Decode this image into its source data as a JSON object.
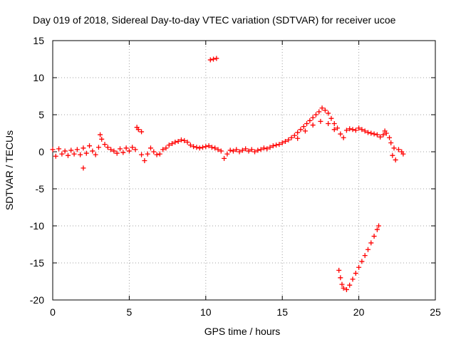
{
  "chart_data": {
    "type": "scatter",
    "title": "Day 019 of 2018, Sidereal Day-to-day VTEC variation (SDTVAR) for receiver ucoe",
    "xlabel": "GPS time / hours",
    "ylabel": "SDTVAR / TECUs",
    "xlim": [
      0,
      25
    ],
    "ylim": [
      -20,
      15
    ],
    "xticks": [
      0,
      5,
      10,
      15,
      20,
      25
    ],
    "yticks": [
      15,
      10,
      5,
      0,
      -5,
      -10,
      -15,
      -20
    ],
    "grid": true,
    "marker": "+",
    "colors": {
      "series": "#ff0000",
      "grid": "#a0a0a0",
      "axis": "#000000"
    },
    "series": [
      {
        "name": "SDTVAR",
        "points": [
          [
            0.0,
            0.3
          ],
          [
            0.2,
            -0.6
          ],
          [
            0.4,
            0.4
          ],
          [
            0.6,
            -0.3
          ],
          [
            0.8,
            0.1
          ],
          [
            1.0,
            -0.5
          ],
          [
            1.2,
            0.2
          ],
          [
            1.4,
            -0.3
          ],
          [
            1.6,
            0.3
          ],
          [
            1.8,
            -0.4
          ],
          [
            2.0,
            0.5
          ],
          [
            2.0,
            -2.2
          ],
          [
            2.2,
            -0.2
          ],
          [
            2.4,
            0.8
          ],
          [
            2.6,
            0.1
          ],
          [
            2.8,
            -0.4
          ],
          [
            3.0,
            0.6
          ],
          [
            3.1,
            2.3
          ],
          [
            3.2,
            1.7
          ],
          [
            3.4,
            1.0
          ],
          [
            3.6,
            0.6
          ],
          [
            3.8,
            0.3
          ],
          [
            4.0,
            0.1
          ],
          [
            4.2,
            -0.2
          ],
          [
            4.4,
            0.4
          ],
          [
            4.6,
            -0.1
          ],
          [
            4.8,
            0.5
          ],
          [
            5.0,
            0.1
          ],
          [
            5.2,
            0.6
          ],
          [
            5.4,
            0.3
          ],
          [
            5.5,
            3.3
          ],
          [
            5.6,
            3.0
          ],
          [
            5.8,
            2.7
          ],
          [
            5.8,
            -0.4
          ],
          [
            6.0,
            -1.2
          ],
          [
            6.2,
            -0.3
          ],
          [
            6.4,
            0.5
          ],
          [
            6.6,
            0.0
          ],
          [
            6.8,
            -0.4
          ],
          [
            7.0,
            -0.3
          ],
          [
            7.2,
            0.3
          ],
          [
            7.4,
            0.5
          ],
          [
            7.6,
            0.9
          ],
          [
            7.8,
            1.1
          ],
          [
            8.0,
            1.3
          ],
          [
            8.2,
            1.4
          ],
          [
            8.4,
            1.6
          ],
          [
            8.6,
            1.5
          ],
          [
            8.8,
            1.3
          ],
          [
            9.0,
            0.9
          ],
          [
            9.2,
            0.7
          ],
          [
            9.4,
            0.6
          ],
          [
            9.6,
            0.5
          ],
          [
            9.8,
            0.6
          ],
          [
            10.0,
            0.7
          ],
          [
            10.2,
            0.8
          ],
          [
            10.4,
            0.6
          ],
          [
            10.6,
            0.5
          ],
          [
            10.8,
            0.3
          ],
          [
            10.3,
            12.4
          ],
          [
            10.5,
            12.5
          ],
          [
            10.7,
            12.6
          ],
          [
            11.0,
            0.1
          ],
          [
            11.2,
            -0.9
          ],
          [
            11.4,
            -0.3
          ],
          [
            11.6,
            0.2
          ],
          [
            11.8,
            0.1
          ],
          [
            12.0,
            0.3
          ],
          [
            12.2,
            0.0
          ],
          [
            12.4,
            0.2
          ],
          [
            12.6,
            0.4
          ],
          [
            12.8,
            0.1
          ],
          [
            13.0,
            0.3
          ],
          [
            13.2,
            0.0
          ],
          [
            13.4,
            0.2
          ],
          [
            13.6,
            0.3
          ],
          [
            13.8,
            0.5
          ],
          [
            14.0,
            0.4
          ],
          [
            14.2,
            0.6
          ],
          [
            14.4,
            0.8
          ],
          [
            14.6,
            0.9
          ],
          [
            14.8,
            1.0
          ],
          [
            15.0,
            1.2
          ],
          [
            15.2,
            1.4
          ],
          [
            15.4,
            1.6
          ],
          [
            15.6,
            1.9
          ],
          [
            15.8,
            2.2
          ],
          [
            16.0,
            2.6
          ],
          [
            16.2,
            3.0
          ],
          [
            16.4,
            3.4
          ],
          [
            16.6,
            3.8
          ],
          [
            16.8,
            4.2
          ],
          [
            17.0,
            4.6
          ],
          [
            17.2,
            5.0
          ],
          [
            17.4,
            5.4
          ],
          [
            17.6,
            5.9
          ],
          [
            17.8,
            5.6
          ],
          [
            18.0,
            5.2
          ],
          [
            18.2,
            4.5
          ],
          [
            18.4,
            3.8
          ],
          [
            18.6,
            3.2
          ],
          [
            16.0,
            1.8
          ],
          [
            16.5,
            2.8
          ],
          [
            17.0,
            3.6
          ],
          [
            17.5,
            4.1
          ],
          [
            18.0,
            3.8
          ],
          [
            18.4,
            3.0
          ],
          [
            18.8,
            2.4
          ],
          [
            19.0,
            1.9
          ],
          [
            19.2,
            2.9
          ],
          [
            19.4,
            3.1
          ],
          [
            19.6,
            3.0
          ],
          [
            19.8,
            2.9
          ],
          [
            20.0,
            3.2
          ],
          [
            20.2,
            3.0
          ],
          [
            20.4,
            2.8
          ],
          [
            20.6,
            2.6
          ],
          [
            20.8,
            2.5
          ],
          [
            21.0,
            2.4
          ],
          [
            21.2,
            2.3
          ],
          [
            21.4,
            2.0
          ],
          [
            21.6,
            2.3
          ],
          [
            21.7,
            2.8
          ],
          [
            21.8,
            2.5
          ],
          [
            22.0,
            1.9
          ],
          [
            22.1,
            1.2
          ],
          [
            22.2,
            -0.5
          ],
          [
            22.4,
            -1.1
          ],
          [
            22.3,
            0.5
          ],
          [
            22.6,
            0.3
          ],
          [
            22.8,
            0.0
          ],
          [
            22.9,
            -0.3
          ],
          [
            18.7,
            -16.0
          ],
          [
            18.8,
            -17.0
          ],
          [
            18.9,
            -17.9
          ],
          [
            19.0,
            -18.4
          ],
          [
            19.2,
            -18.6
          ],
          [
            19.4,
            -18.0
          ],
          [
            19.6,
            -17.2
          ],
          [
            19.8,
            -16.4
          ],
          [
            20.0,
            -15.6
          ],
          [
            20.2,
            -14.8
          ],
          [
            20.4,
            -14.0
          ],
          [
            20.6,
            -13.2
          ],
          [
            20.8,
            -12.3
          ],
          [
            21.0,
            -11.4
          ],
          [
            21.2,
            -10.5
          ],
          [
            21.3,
            -10.0
          ]
        ]
      }
    ]
  }
}
